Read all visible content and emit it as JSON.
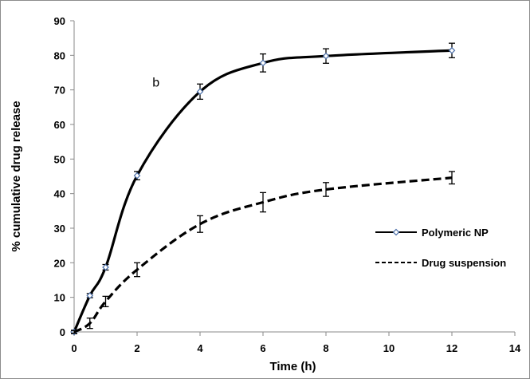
{
  "chart_data": {
    "type": "line",
    "xlabel": "Time (h)",
    "ylabel": "% cumulative  drug release",
    "xlim": [
      0,
      14
    ],
    "ylim": [
      0,
      90
    ],
    "xticks": [
      0,
      2,
      4,
      6,
      8,
      10,
      12,
      14
    ],
    "yticks": [
      0,
      10,
      20,
      30,
      40,
      50,
      60,
      70,
      80,
      90
    ],
    "grid": false,
    "legend_position": "right",
    "annotations": [
      {
        "text": "b",
        "x": 2.6,
        "y": 71
      }
    ],
    "series": [
      {
        "name": "Polymeric NP",
        "style": "solid",
        "marker": "diamond",
        "color": "#000000",
        "marker_color": "#4a6ea8",
        "x": [
          0,
          0.5,
          1,
          2,
          4,
          6,
          8,
          12
        ],
        "y": [
          0,
          10.5,
          18.7,
          45.2,
          69.5,
          77.8,
          79.8,
          81.4
        ],
        "error": [
          0.5,
          0.6,
          0.8,
          1.2,
          2.2,
          2.6,
          2.1,
          2.1
        ]
      },
      {
        "name": "Drug suspension",
        "style": "dashed",
        "marker": "none",
        "color": "#000000",
        "x": [
          0,
          0.5,
          1,
          2,
          4,
          6,
          8,
          12
        ],
        "y": [
          0,
          2.5,
          8.8,
          18,
          31.2,
          37.5,
          41.2,
          44.6
        ],
        "error": [
          0.4,
          1.5,
          1.5,
          2,
          2.4,
          2.8,
          2,
          1.8
        ]
      }
    ]
  }
}
